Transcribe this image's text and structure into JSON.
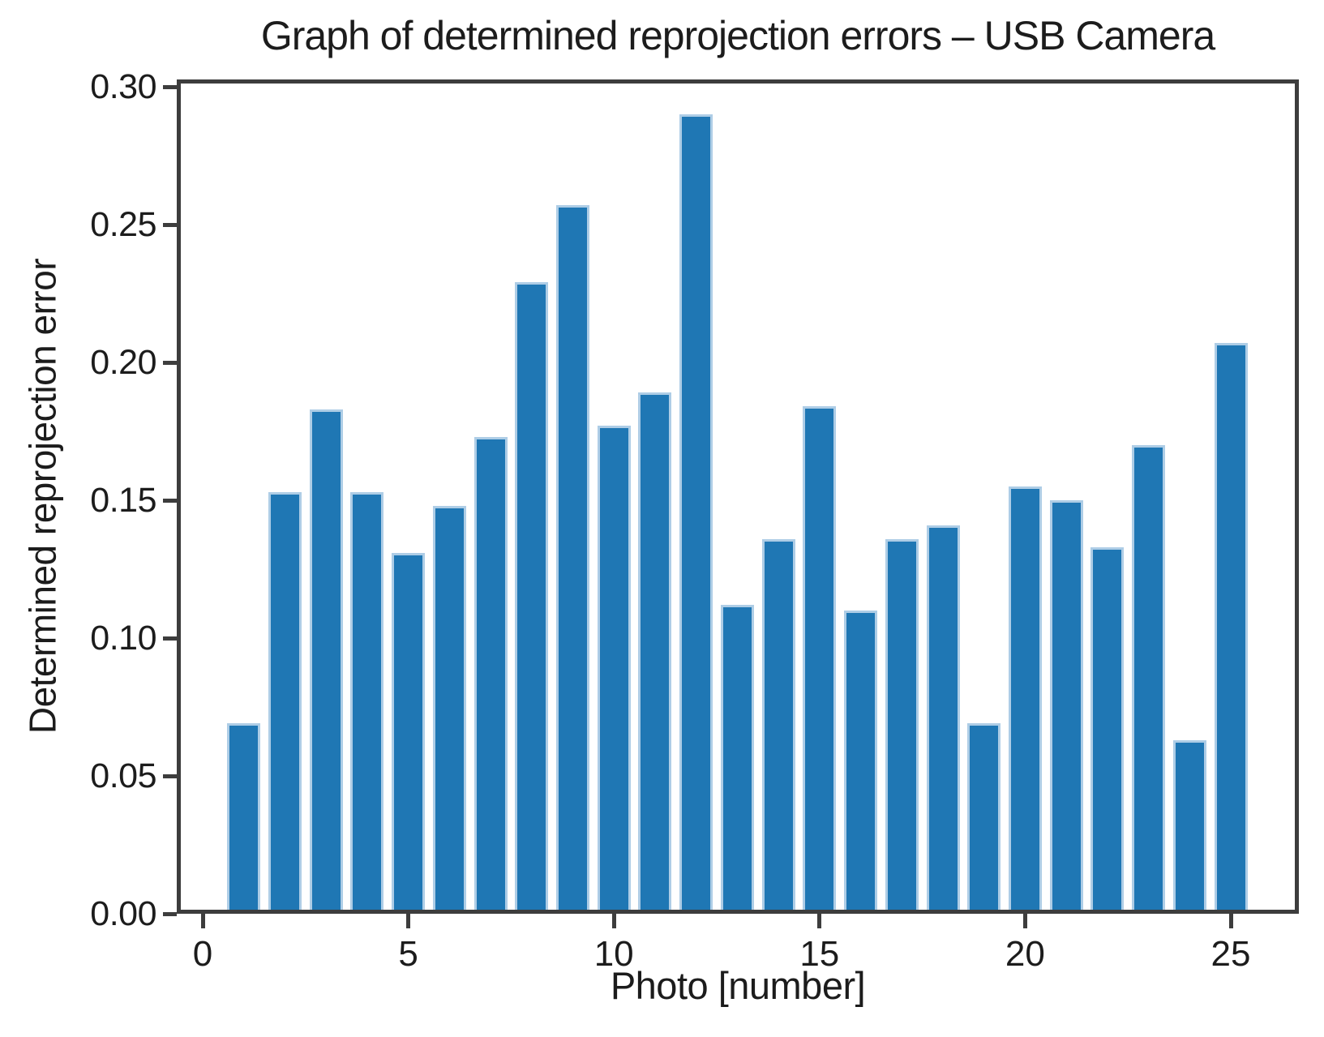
{
  "chart_data": {
    "type": "bar",
    "title": "Graph of determined reprojection errors – USB Camera",
    "xlabel": "Photo [number]",
    "ylabel": "Determined reprojection error",
    "categories": [
      1,
      2,
      3,
      4,
      5,
      6,
      7,
      8,
      9,
      10,
      11,
      12,
      13,
      14,
      15,
      16,
      17,
      18,
      19,
      20,
      21,
      22,
      23,
      24,
      25
    ],
    "values": [
      0.069,
      0.153,
      0.183,
      0.153,
      0.131,
      0.148,
      0.173,
      0.229,
      0.257,
      0.177,
      0.189,
      0.29,
      0.112,
      0.136,
      0.184,
      0.11,
      0.136,
      0.141,
      0.069,
      0.155,
      0.15,
      0.133,
      0.17,
      0.063,
      0.207
    ],
    "xticks": [
      {
        "v": 0,
        "label": "0"
      },
      {
        "v": 5,
        "label": "5"
      },
      {
        "v": 10,
        "label": "10"
      },
      {
        "v": 15,
        "label": "15"
      },
      {
        "v": 20,
        "label": "20"
      },
      {
        "v": 25,
        "label": "25"
      }
    ],
    "yticks": [
      {
        "v": 0.0,
        "label": "0.00"
      },
      {
        "v": 0.05,
        "label": "0.05"
      },
      {
        "v": 0.1,
        "label": "0.10"
      },
      {
        "v": 0.15,
        "label": "0.15"
      },
      {
        "v": 0.2,
        "label": "0.20"
      },
      {
        "v": 0.25,
        "label": "0.25"
      },
      {
        "v": 0.3,
        "label": "0.30"
      }
    ],
    "xlim": [
      -0.63,
      26.68
    ],
    "ylim": [
      0,
      0.3026
    ],
    "grid": false,
    "legend": null,
    "bar_color": "#1f77b4",
    "bar_edge_color": "#aecde6",
    "axis_color": "#3d3d3d",
    "text_color": "#1c1c1c"
  }
}
